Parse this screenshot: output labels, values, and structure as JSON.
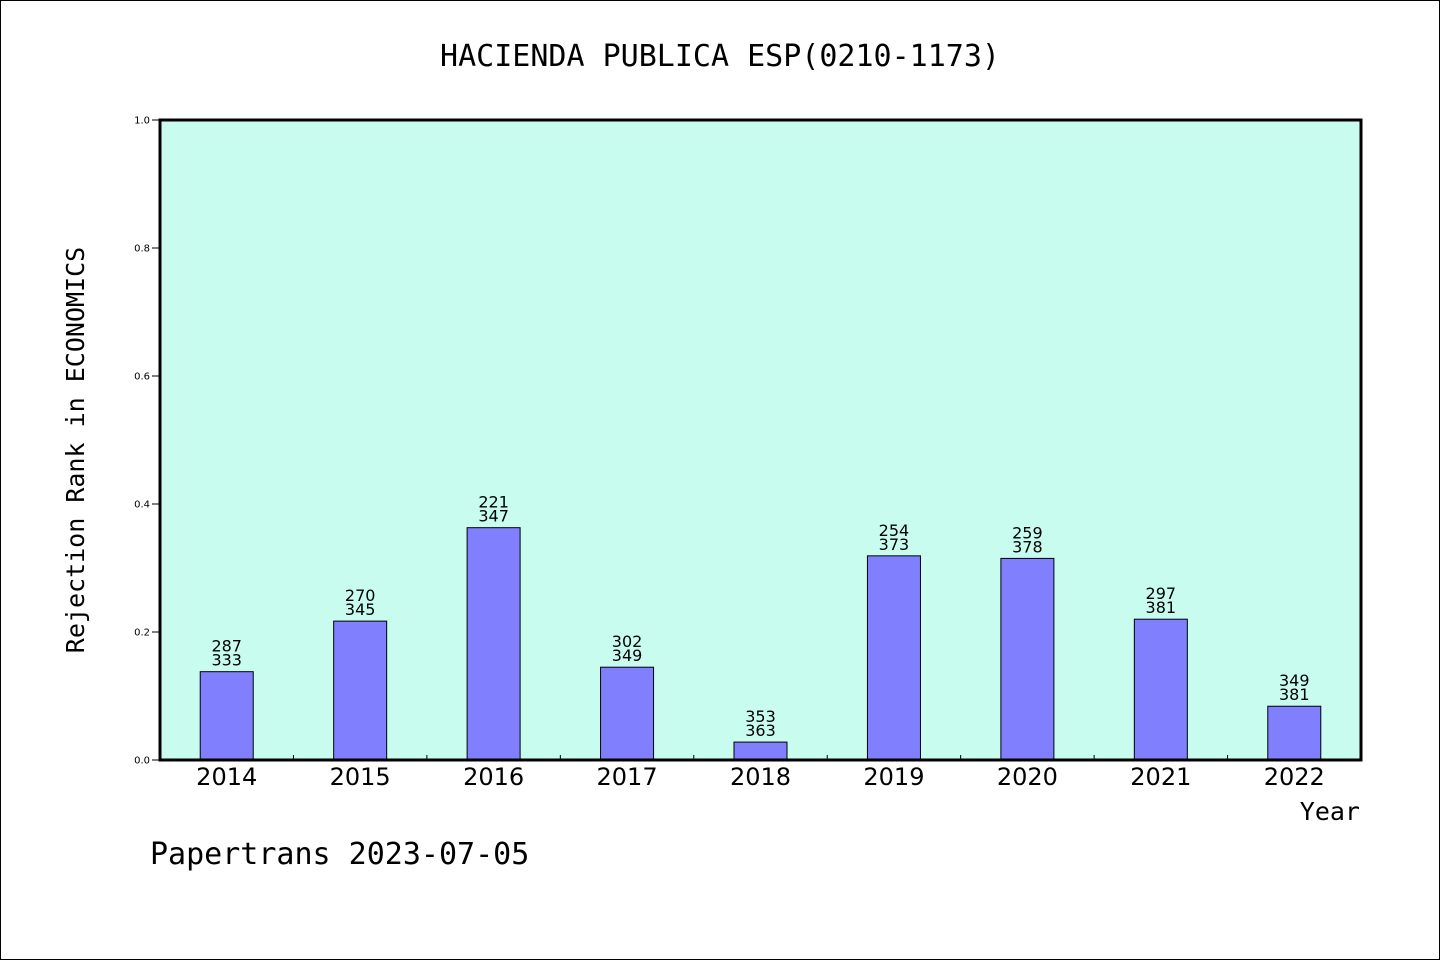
{
  "chart_data": {
    "type": "bar",
    "title": "HACIENDA PUBLICA ESP(0210-1173)",
    "xlabel": "Year",
    "ylabel": "Rejection Rank in ECONOMICS",
    "ylim": [
      0,
      1.0
    ],
    "yticks": [
      "0.0",
      "0.2",
      "0.4",
      "0.6",
      "0.8",
      "1.0"
    ],
    "categories": [
      "2014",
      "2015",
      "2016",
      "2017",
      "2018",
      "2019",
      "2020",
      "2021",
      "2022"
    ],
    "values": [
      0.138,
      0.217,
      0.363,
      0.145,
      0.028,
      0.319,
      0.315,
      0.22,
      0.084
    ],
    "labels_top": [
      "287",
      "270",
      "221",
      "302",
      "353",
      "254",
      "259",
      "297",
      "349"
    ],
    "labels_bottom": [
      "333",
      "345",
      "347",
      "349",
      "363",
      "373",
      "378",
      "381",
      "381"
    ],
    "grid": false,
    "bar_color": "#8080ff",
    "plot_background": "#c8fcee"
  },
  "footer": "Papertrans 2023-07-05"
}
